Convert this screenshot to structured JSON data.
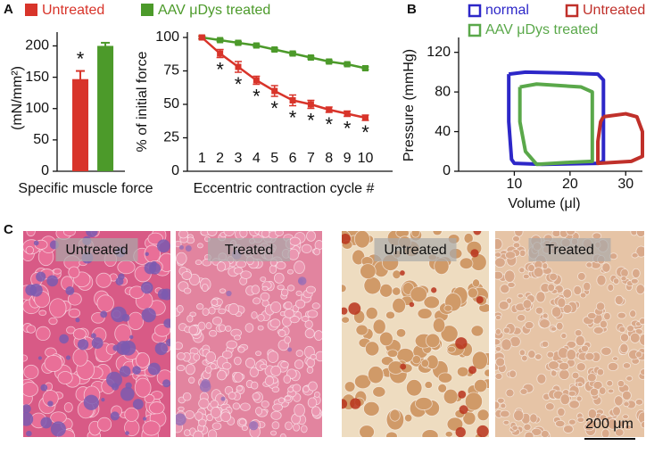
{
  "panels": {
    "a": "A",
    "b": "B",
    "c": "C"
  },
  "chart_data": [
    {
      "type": "bar",
      "y_label": "(mN/mm²)",
      "x_label": "Specific muscle force",
      "categories": [
        null
      ],
      "ylim": [
        0,
        222
      ],
      "yticks": [
        0,
        50,
        100,
        150,
        200
      ],
      "series": [
        {
          "name": "Untreated",
          "color": "#d8342a",
          "values": [
            147
          ],
          "errors": [
            13
          ],
          "markers": [
            "*"
          ]
        },
        {
          "name": "AAV μDys treated",
          "color": "#4c9a2a",
          "values": [
            200
          ],
          "errors": [
            5
          ],
          "markers": [
            null
          ]
        }
      ]
    },
    {
      "type": "line",
      "y_label": "% of initial force",
      "x_label": "Eccentric contraction cycle #",
      "x": [
        1,
        2,
        3,
        4,
        5,
        6,
        7,
        8,
        9,
        10
      ],
      "xlim": [
        0.2,
        11.5
      ],
      "xticks": [
        1,
        2,
        3,
        4,
        5,
        6,
        7,
        8,
        9,
        10
      ],
      "ylim": [
        0,
        104
      ],
      "yticks": [
        0,
        25,
        50,
        75,
        100
      ],
      "series": [
        {
          "color": "#d8342a",
          "values": [
            100,
            88,
            78,
            68,
            60,
            53,
            50,
            46,
            43,
            40
          ],
          "errors": [
            1,
            3,
            4,
            3,
            4,
            4,
            3,
            2,
            2,
            2
          ],
          "markers": [
            null,
            "*",
            "*",
            "*",
            "*",
            "*",
            "*",
            "*",
            "*",
            "*"
          ]
        },
        {
          "color": "#4c9a2a",
          "values": [
            100,
            98,
            96,
            94,
            91,
            88,
            85,
            82,
            80,
            77
          ],
          "errors": [
            1,
            1,
            1,
            1,
            1,
            1,
            1,
            1,
            1,
            1
          ]
        }
      ]
    },
    {
      "type": "loop",
      "y_label": "Pressure (mmHg)",
      "x_label": "Volume (μl)",
      "xlim": [
        0,
        33
      ],
      "xticks": [
        10,
        20,
        30
      ],
      "ylim": [
        0,
        135
      ],
      "yticks": [
        0,
        40,
        80,
        120
      ],
      "series": [
        {
          "name": "normal",
          "color": "#2d27c8",
          "x": [
            9,
            12,
            20,
            25,
            26,
            26,
            26,
            25,
            15,
            10,
            9.5,
            9,
            9
          ],
          "values": [
            98,
            100,
            99,
            98,
            92,
            50,
            10,
            8,
            7,
            8,
            12,
            50,
            98
          ]
        },
        {
          "name": "Untreated",
          "color": "#c0302a",
          "x": [
            26,
            30,
            32,
            33,
            33,
            31,
            25,
            25,
            25.5,
            26
          ],
          "values": [
            55,
            58,
            55,
            40,
            15,
            10,
            8,
            30,
            50,
            55
          ]
        },
        {
          "name": "AAV μDys treated",
          "color": "#5aa84a",
          "x": [
            11,
            14,
            22,
            24,
            24,
            24,
            20,
            14,
            12,
            11,
            11
          ],
          "values": [
            85,
            88,
            85,
            80,
            40,
            10,
            9,
            7,
            20,
            50,
            85
          ]
        }
      ]
    }
  ],
  "histology": {
    "labels": [
      "Untreated",
      "Treated",
      "Untreated",
      "Treated"
    ],
    "scale_bar": "200 μm"
  }
}
